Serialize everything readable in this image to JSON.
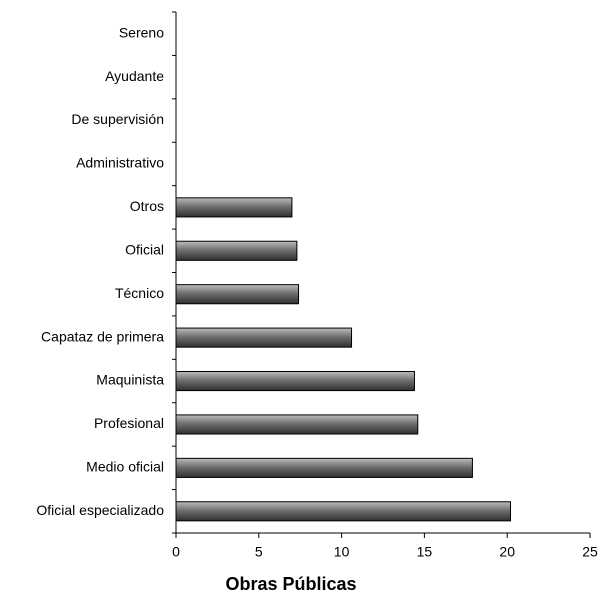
{
  "chart_data": {
    "type": "bar",
    "orientation": "horizontal",
    "xlabel": "Obras Públicas",
    "categories": [
      "Sereno",
      "Ayudante",
      "De supervisión",
      "Administrativo",
      "Otros",
      "Oficial",
      "Técnico",
      "Capataz de primera",
      "Maquinista",
      "Profesional",
      "Medio oficial",
      "Oficial especializado"
    ],
    "values": [
      0,
      0,
      0,
      0,
      7.0,
      7.3,
      7.4,
      10.6,
      14.4,
      14.6,
      17.9,
      20.2
    ],
    "color": "#808080",
    "xlim": [
      0,
      25
    ],
    "xticks": [
      0,
      5,
      10,
      15,
      20,
      25
    ],
    "grid": false
  }
}
